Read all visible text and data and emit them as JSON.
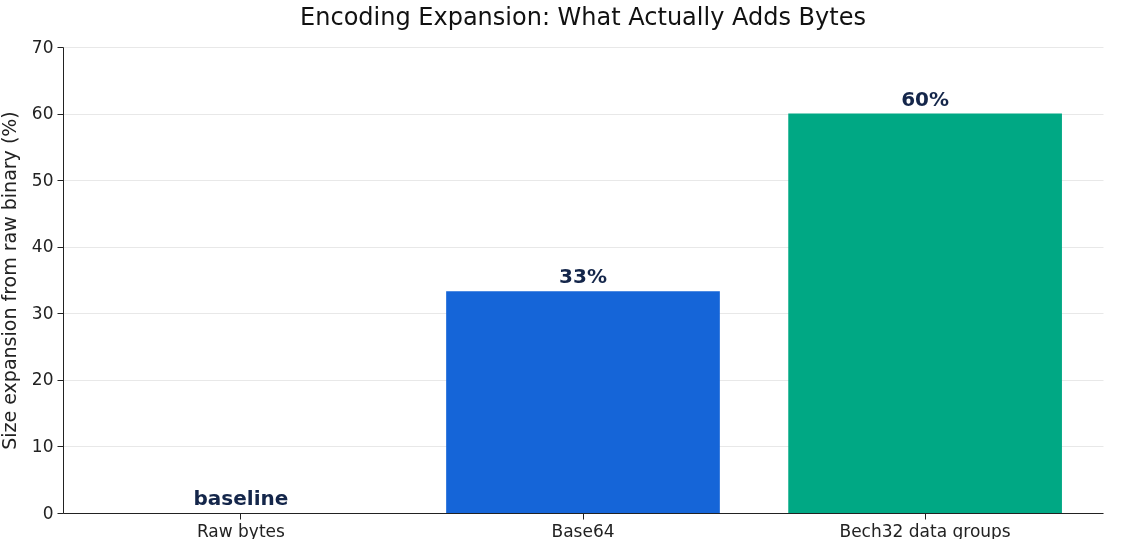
{
  "chart_data": {
    "type": "bar",
    "title": "Encoding Expansion: What Actually Adds Bytes",
    "ylabel": "Size expansion from raw binary (%)",
    "categories": [
      "Raw bytes",
      "Base64",
      "Bech32 data groups"
    ],
    "values": [
      0,
      33.3,
      60
    ],
    "colors": [
      "#888888",
      "#1565d8",
      "#00a884"
    ],
    "value_labels": [
      "baseline",
      "33%",
      "60%"
    ],
    "ylim": [
      0,
      70
    ],
    "yticks": [
      0,
      10,
      20,
      30,
      40,
      50,
      60,
      70
    ],
    "grid": "y",
    "legend": false
  }
}
